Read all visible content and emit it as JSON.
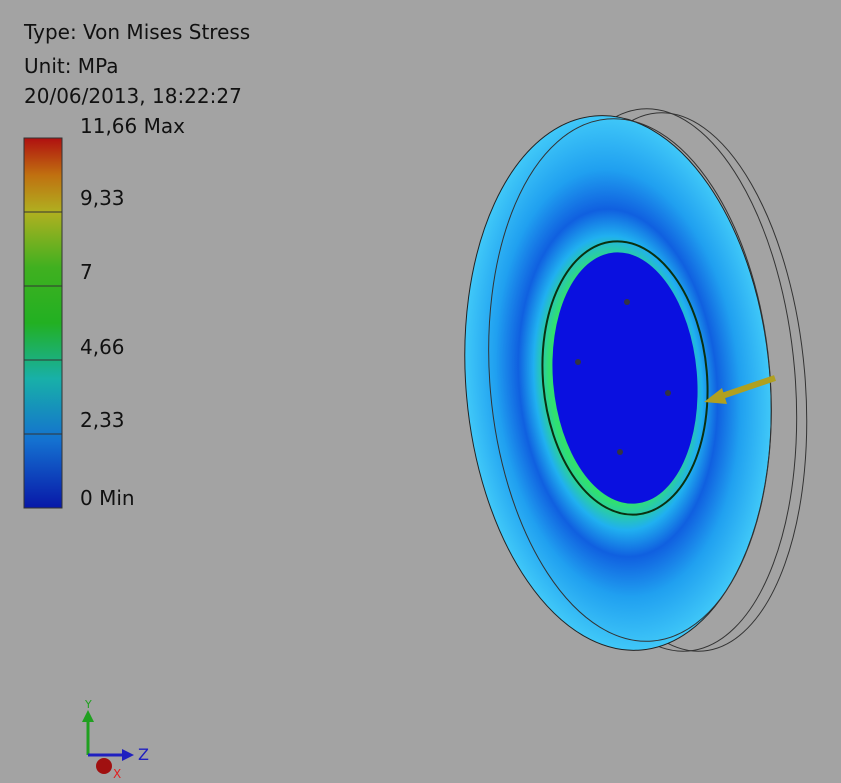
{
  "header": {
    "type": "Type: Von Mises Stress",
    "unit": "Unit: MPa",
    "timestamp": "20/06/2013, 18:22:27"
  },
  "legend": {
    "labels": [
      "11,66 Max",
      "9,33",
      "7",
      "4,66",
      "2,33",
      "0 Min"
    ]
  },
  "triad": {
    "y": "Y",
    "z": "Z",
    "x": "X"
  }
}
